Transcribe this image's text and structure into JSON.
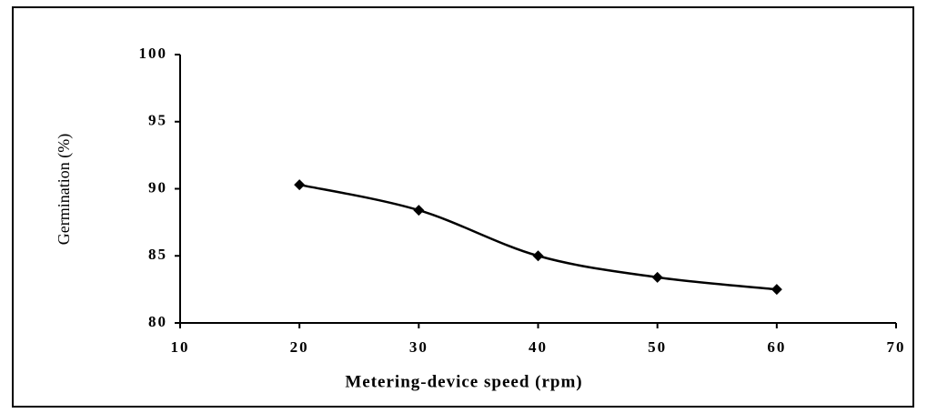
{
  "chart_data": {
    "type": "line",
    "x_label": "Metering-device speed (rpm)",
    "y_label": "Germination (%)",
    "x": [
      20,
      30,
      40,
      50,
      60
    ],
    "series": [
      {
        "color": "#000000",
        "values": [
          90.3,
          88.4,
          85.0,
          83.4,
          82.5
        ]
      }
    ],
    "xlim": [
      10,
      70
    ],
    "xticks": [
      10,
      20,
      30,
      40,
      50,
      60,
      70
    ],
    "ylim": [
      80,
      100
    ],
    "yticks": [
      80,
      85,
      90,
      95,
      100
    ],
    "grid": false,
    "smooth": true,
    "marker": "diamond"
  }
}
